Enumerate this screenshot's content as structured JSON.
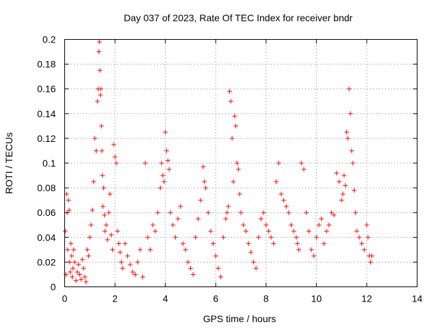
{
  "chart_data": {
    "type": "scatter",
    "title": "Day 037 of 2023, Rate Of TEC Index for receiver bndr",
    "xlabel": "GPS time / hours",
    "ylabel": "ROTI / TECUs",
    "xlim": [
      0,
      14
    ],
    "ylim": [
      0,
      0.2
    ],
    "xticks": [
      "0",
      "2",
      "4",
      "6",
      "8",
      "10",
      "12",
      "14"
    ],
    "yticks": [
      "0",
      "0.02",
      "0.04",
      "0.06",
      "0.08",
      "0.1",
      "0.12",
      "0.14",
      "0.16",
      "0.18",
      "0.2"
    ],
    "grid": true,
    "marker": "+",
    "color": "#ff0000",
    "series": [
      {
        "x": [
          0.02,
          0.05,
          0.08,
          0.1,
          0.12,
          0.15,
          0.18,
          0.2,
          0.22,
          0.25,
          0.28,
          0.3,
          0.33,
          0.36,
          0.4,
          0.45,
          0.5,
          0.55,
          0.6,
          0.65,
          0.7,
          0.75,
          0.8,
          0.85,
          0.9,
          0.95,
          1.0,
          1.05,
          1.1,
          1.15,
          1.2,
          1.25,
          1.3,
          1.33,
          1.36,
          1.38,
          1.4,
          1.42,
          1.44,
          1.46,
          1.48,
          1.5,
          1.52,
          1.55,
          1.58,
          1.6,
          1.65,
          1.7,
          1.75,
          1.8,
          1.85,
          1.9,
          1.95,
          2.0,
          2.05,
          2.1,
          2.15,
          2.2,
          2.25,
          2.3,
          2.4,
          2.5,
          2.6,
          2.7,
          2.8,
          2.9,
          3.0,
          3.1,
          3.2,
          3.3,
          3.4,
          3.5,
          3.6,
          3.7,
          3.8,
          3.85,
          3.9,
          3.95,
          4.0,
          4.05,
          4.1,
          4.15,
          4.2,
          4.3,
          4.4,
          4.5,
          4.6,
          4.7,
          4.8,
          4.9,
          5.0,
          5.1,
          5.2,
          5.3,
          5.4,
          5.5,
          5.55,
          5.6,
          5.7,
          5.8,
          5.9,
          6.0,
          6.1,
          6.2,
          6.3,
          6.4,
          6.45,
          6.5,
          6.55,
          6.6,
          6.65,
          6.7,
          6.75,
          6.8,
          6.85,
          6.9,
          6.95,
          7.0,
          7.1,
          7.2,
          7.3,
          7.4,
          7.5,
          7.6,
          7.7,
          7.8,
          7.9,
          8.0,
          8.1,
          8.2,
          8.3,
          8.4,
          8.5,
          8.6,
          8.7,
          8.8,
          8.9,
          9.0,
          9.1,
          9.2,
          9.25,
          9.3,
          9.4,
          9.5,
          9.6,
          9.7,
          9.8,
          9.9,
          10.0,
          10.1,
          10.2,
          10.3,
          10.4,
          10.5,
          10.6,
          10.7,
          10.8,
          10.9,
          11.0,
          11.05,
          11.1,
          11.15,
          11.2,
          11.25,
          11.3,
          11.35,
          11.4,
          11.45,
          11.5,
          11.55,
          11.6,
          11.7,
          11.8,
          11.9,
          12.0,
          12.05,
          12.1,
          12.15,
          12.2
        ],
        "y": [
          0.045,
          0.01,
          0.075,
          0.06,
          0.03,
          0.07,
          0.062,
          0.02,
          0.012,
          0.035,
          0.025,
          0.008,
          0.015,
          0.03,
          0.02,
          0.005,
          0.012,
          0.018,
          0.01,
          0.006,
          0.022,
          0.015,
          0.008,
          0.004,
          0.03,
          0.025,
          0.04,
          0.05,
          0.062,
          0.085,
          0.12,
          0.11,
          0.15,
          0.16,
          0.19,
          0.198,
          0.175,
          0.155,
          0.16,
          0.13,
          0.11,
          0.09,
          0.065,
          0.08,
          0.058,
          0.045,
          0.05,
          0.038,
          0.06,
          0.075,
          0.042,
          0.03,
          0.115,
          0.105,
          0.1,
          0.045,
          0.035,
          0.028,
          0.02,
          0.015,
          0.035,
          0.025,
          0.018,
          0.012,
          0.01,
          0.02,
          0.03,
          0.008,
          0.1,
          0.04,
          0.03,
          0.05,
          0.045,
          0.06,
          0.08,
          0.1,
          0.09,
          0.085,
          0.125,
          0.11,
          0.102,
          0.095,
          0.06,
          0.05,
          0.04,
          0.055,
          0.065,
          0.035,
          0.03,
          0.02,
          0.015,
          0.01,
          0.04,
          0.055,
          0.07,
          0.097,
          0.085,
          0.08,
          0.06,
          0.045,
          0.035,
          0.025,
          0.015,
          0.008,
          0.04,
          0.055,
          0.06,
          0.065,
          0.158,
          0.15,
          0.12,
          0.085,
          0.138,
          0.13,
          0.1,
          0.095,
          0.075,
          0.06,
          0.05,
          0.045,
          0.035,
          0.028,
          0.02,
          0.015,
          0.04,
          0.055,
          0.06,
          0.05,
          0.045,
          0.04,
          0.035,
          0.085,
          0.1,
          0.075,
          0.07,
          0.065,
          0.06,
          0.05,
          0.045,
          0.04,
          0.035,
          0.03,
          0.1,
          0.095,
          0.06,
          0.045,
          0.03,
          0.025,
          0.04,
          0.05,
          0.055,
          0.035,
          0.045,
          0.05,
          0.06,
          0.058,
          0.092,
          0.085,
          0.07,
          0.075,
          0.09,
          0.082,
          0.125,
          0.12,
          0.16,
          0.14,
          0.11,
          0.1,
          0.078,
          0.06,
          0.045,
          0.04,
          0.035,
          0.03,
          0.05,
          0.04,
          0.025,
          0.02,
          0.025
        ]
      }
    ]
  }
}
